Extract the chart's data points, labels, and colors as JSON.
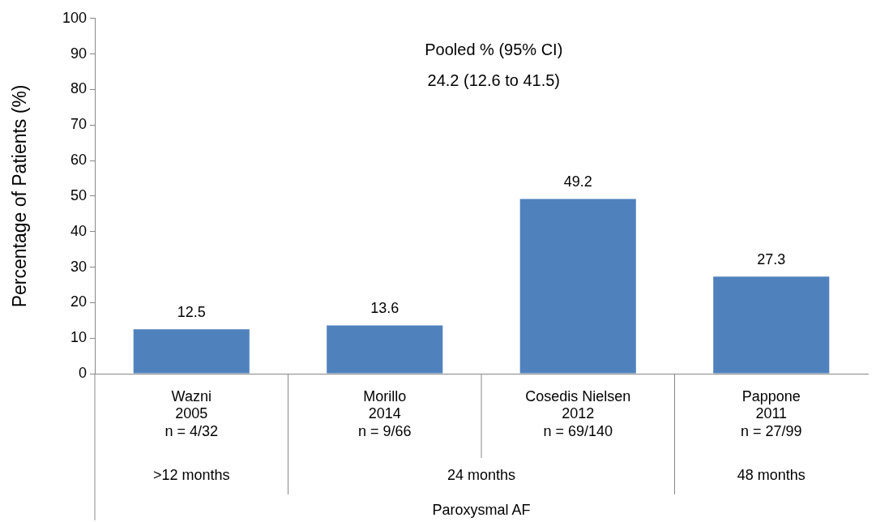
{
  "chart_data": {
    "type": "bar",
    "categories": [
      "Wazni\n2005\nn = 4/32",
      "Morillo\n2014\nn = 9/66",
      "Cosedis Nielsen\n2012\nn = 69/140",
      "Pappone\n2011\nn = 27/99"
    ],
    "values": [
      12.5,
      13.6,
      49.2,
      27.3
    ],
    "color": "#4f81bd",
    "data_labels": true,
    "ylabel": "Percentage of Patients (%)",
    "ylim": [
      0,
      100
    ],
    "yticks": [
      0,
      10,
      20,
      30,
      40,
      50,
      60,
      70,
      80,
      90,
      100
    ],
    "grid": false,
    "legend": false,
    "annotations": [
      "Pooled % (95% CI)\n24.2 (12.6 to 41.5)",
      ">12 months",
      "24 months",
      "48 months",
      "Paroxysmal AF"
    ]
  }
}
